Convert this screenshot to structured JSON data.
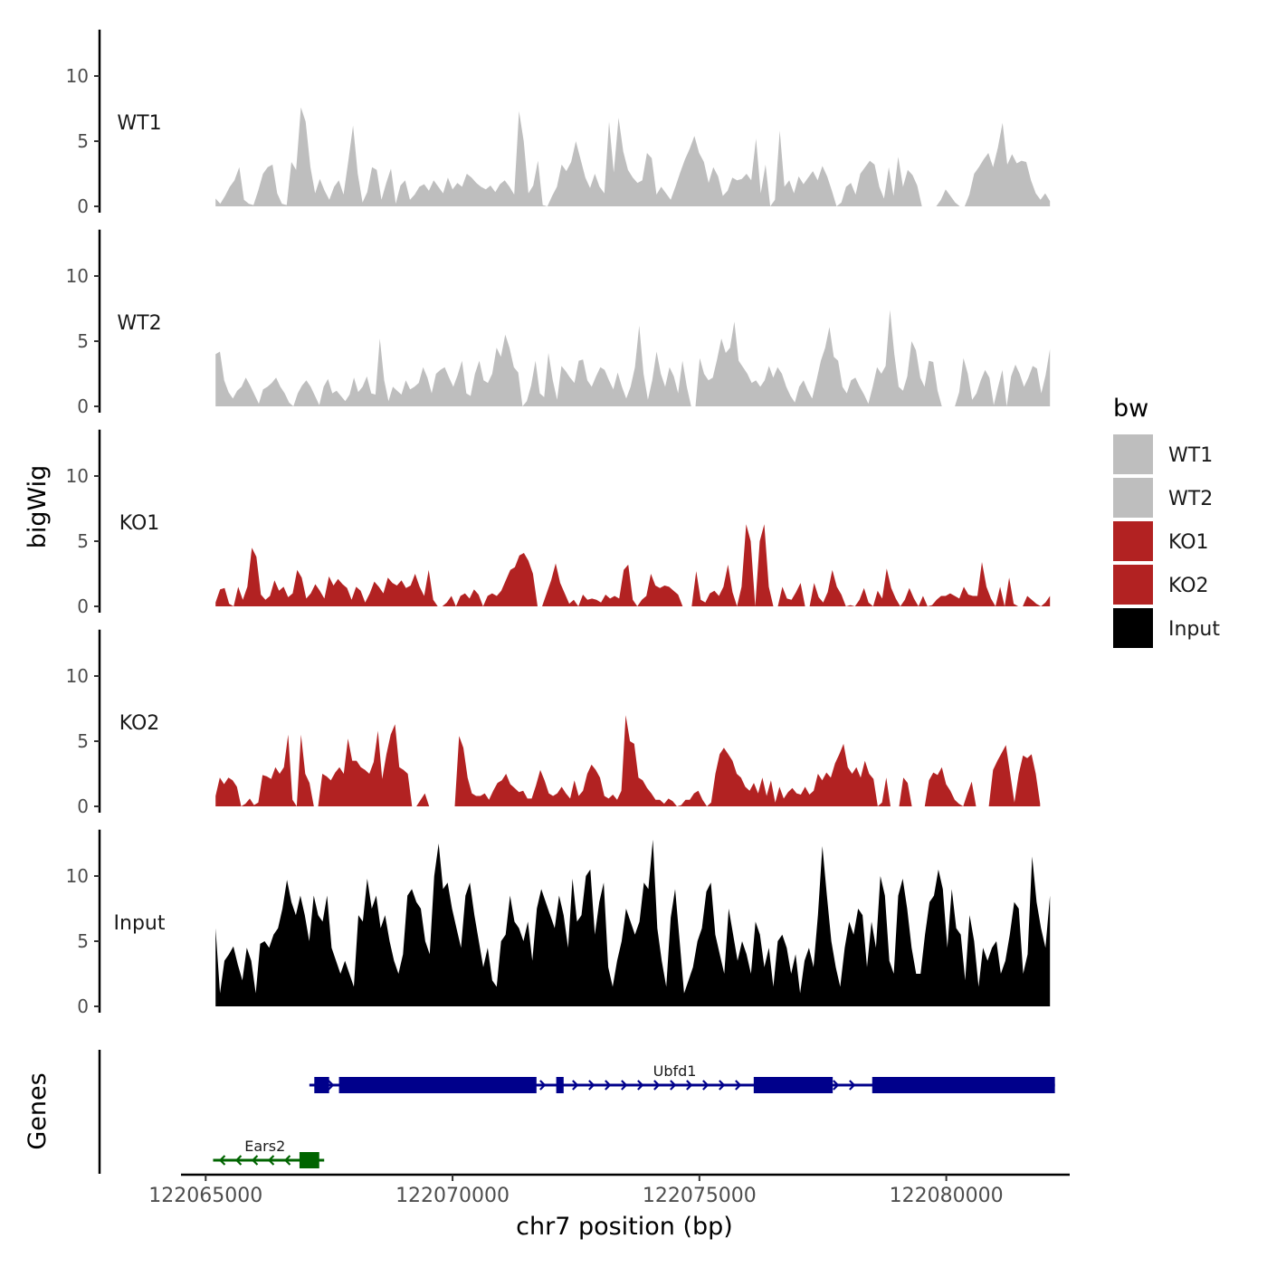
{
  "chart_data": {
    "type": "area",
    "title": "",
    "xlabel": "chr7 position (bp)",
    "ylabel": "bigWig",
    "genes_axis_label": "Genes",
    "xlim": [
      122064500,
      122082500
    ],
    "ylim": [
      0,
      13
    ],
    "x_ticks": [
      122065000,
      122070000,
      122075000,
      122080000
    ],
    "x_tick_labels": [
      "122065000",
      "122070000",
      "122075000",
      "122080000"
    ],
    "y_ticks": [
      0,
      5,
      10
    ],
    "y_tick_labels": [
      "0",
      "5",
      "10"
    ],
    "legend": {
      "title": "bw",
      "position": "right",
      "entries": [
        {
          "label": "WT1",
          "color": "#bebebe"
        },
        {
          "label": "WT2",
          "color": "#bebebe"
        },
        {
          "label": "KO1",
          "color": "#b22222"
        },
        {
          "label": "KO2",
          "color": "#b22222"
        },
        {
          "label": "Input",
          "color": "#000000"
        }
      ]
    },
    "series": [
      {
        "name": "WT1",
        "color": "#bebebe",
        "x_start": 122065200,
        "x_end": 122082100,
        "values": [
          0.6,
          0.2,
          0.8,
          1.5,
          2.0,
          3.0,
          0.5,
          0.2,
          0.1,
          1.2,
          2.5,
          3.0,
          3.2,
          1.0,
          0.2,
          0.1,
          3.4,
          2.8,
          7.6,
          6.5,
          3.0,
          1.0,
          2.1,
          1.2,
          0.5,
          1.5,
          2.0,
          0.9,
          3.5,
          6.2,
          2.5,
          0.3,
          1.1,
          3.0,
          2.8,
          0.5,
          1.8,
          2.9,
          0.2,
          1.6,
          2.0,
          0.5,
          0.9,
          1.5,
          1.7,
          1.2,
          2.0,
          1.5,
          1.0,
          2.2,
          1.3,
          1.8,
          1.5,
          2.5,
          2.2,
          1.8,
          1.5,
          1.3,
          1.6,
          1.1,
          1.7,
          2.0,
          1.5,
          0.9,
          7.3,
          5.0,
          1.0,
          1.6,
          3.5,
          0.1,
          0.0,
          0.8,
          1.5,
          3.2,
          2.7,
          3.4,
          5.0,
          3.6,
          2.2,
          1.4,
          2.5,
          1.5,
          1.0,
          6.5,
          2.6,
          6.8,
          4.2,
          2.8,
          2.2,
          1.8,
          2.0,
          4.1,
          3.7,
          0.9,
          1.5,
          1.0,
          0.5,
          1.5,
          2.6,
          3.6,
          4.4,
          5.4,
          4.1,
          3.4,
          1.8,
          3.0,
          2.3,
          0.8,
          1.2,
          2.2,
          2.0,
          2.1,
          2.5,
          2.0,
          5.2,
          1.0,
          3.2,
          0.0,
          0.5,
          5.8,
          1.5,
          2.0,
          1.0,
          2.3,
          1.7,
          2.2,
          2.7,
          2.0,
          3.1,
          2.3,
          1.2,
          0.0,
          0.3,
          1.5,
          1.8,
          0.9,
          2.5,
          3.0,
          3.5,
          3.2,
          1.5,
          0.6,
          3.0,
          0.8,
          3.8,
          1.5,
          2.8,
          2.4,
          1.6,
          0.0,
          0.0,
          0.0,
          0.0,
          0.5,
          1.3,
          0.8,
          0.3,
          0.0,
          0.0,
          0.9,
          2.5,
          3.0,
          3.6,
          4.1,
          3.0,
          4.5,
          6.4,
          3.2,
          4.0,
          3.3,
          3.5,
          3.4,
          2.0,
          1.0,
          0.5,
          1.0,
          0.4
        ]
      },
      {
        "name": "WT2",
        "color": "#bebebe",
        "x_start": 122065200,
        "x_end": 122082100,
        "values": [
          4.0,
          4.2,
          2.0,
          1.1,
          0.6,
          1.2,
          1.5,
          2.2,
          1.6,
          0.9,
          0.2,
          1.3,
          1.5,
          1.8,
          2.2,
          1.5,
          1.0,
          0.3,
          0.0,
          1.0,
          1.6,
          2.0,
          1.5,
          0.8,
          0.1,
          1.5,
          2.1,
          1.0,
          1.2,
          0.8,
          0.4,
          0.9,
          2.2,
          1.1,
          1.5,
          2.3,
          1.0,
          0.9,
          5.2,
          2.0,
          0.4,
          1.5,
          1.2,
          0.9,
          2.0,
          1.3,
          1.5,
          1.8,
          3.0,
          2.2,
          1.0,
          2.5,
          2.8,
          3.0,
          2.2,
          1.5,
          2.4,
          3.5,
          1.0,
          0.8,
          2.5,
          3.5,
          2.0,
          1.8,
          2.5,
          4.5,
          3.8,
          5.5,
          4.5,
          3.0,
          2.6,
          0.0,
          0.4,
          1.6,
          3.5,
          1.0,
          0.7,
          4.1,
          2.0,
          0.5,
          3.1,
          2.7,
          2.2,
          1.8,
          3.5,
          3.6,
          2.0,
          1.5,
          2.3,
          3.0,
          2.8,
          2.0,
          1.3,
          2.6,
          1.5,
          0.6,
          1.5,
          3.0,
          6.2,
          2.5,
          0.5,
          2.0,
          4.2,
          2.5,
          1.5,
          3.0,
          2.3,
          1.0,
          3.5,
          1.5,
          0.0,
          0.0,
          3.7,
          2.5,
          2.0,
          2.2,
          3.6,
          5.2,
          4.1,
          4.5,
          6.5,
          3.5,
          3.0,
          2.5,
          1.8,
          2.0,
          1.5,
          2.0,
          3.1,
          2.2,
          3.0,
          2.5,
          1.5,
          0.8,
          0.3,
          1.5,
          2.0,
          1.2,
          0.6,
          2.0,
          3.5,
          4.5,
          6.1,
          3.8,
          3.5,
          1.5,
          1.0,
          2.0,
          2.2,
          1.5,
          0.9,
          0.2,
          1.5,
          3.0,
          2.5,
          3.1,
          7.4,
          4.0,
          1.5,
          1.2,
          2.3,
          5.0,
          4.3,
          2.2,
          1.5,
          3.5,
          3.4,
          1.2,
          0.0,
          0.0,
          0.0,
          0.0,
          1.1,
          3.7,
          2.5,
          0.5,
          1.0,
          2.0,
          2.8,
          2.2,
          0.1,
          1.5,
          2.8,
          0.0,
          2.3,
          3.2,
          2.5,
          1.5,
          2.2,
          3.1,
          2.9,
          1.0,
          2.4,
          4.4
        ]
      },
      {
        "name": "KO1",
        "color": "#b22222",
        "x_start": 122065200,
        "x_end": 122082100,
        "values": [
          0.3,
          1.3,
          1.4,
          0.2,
          0.0,
          1.5,
          0.5,
          1.5,
          4.5,
          3.8,
          0.9,
          0.5,
          0.8,
          2.0,
          1.2,
          1.5,
          0.7,
          1.0,
          2.8,
          2.2,
          0.6,
          1.0,
          1.7,
          1.2,
          0.6,
          2.3,
          1.6,
          2.1,
          1.7,
          1.4,
          0.5,
          1.5,
          1.2,
          0.3,
          1.0,
          1.9,
          1.5,
          1.0,
          2.2,
          1.8,
          1.6,
          2.0,
          1.4,
          1.6,
          2.5,
          1.5,
          0.8,
          2.8,
          0.5,
          0.0,
          0.0,
          0.3,
          0.8,
          0.0,
          0.8,
          1.0,
          0.6,
          1.3,
          0.9,
          0.0,
          0.8,
          1.0,
          0.8,
          1.2,
          2.0,
          2.8,
          3.0,
          3.9,
          4.1,
          3.5,
          2.5,
          0.0,
          0.0,
          1.0,
          2.0,
          3.3,
          1.8,
          1.0,
          0.2,
          0.5,
          0.0,
          0.9,
          0.5,
          0.6,
          0.5,
          0.3,
          0.9,
          0.6,
          0.8,
          0.6,
          2.8,
          3.2,
          0.5,
          0.0,
          0.5,
          0.8,
          2.5,
          1.6,
          1.4,
          1.6,
          1.5,
          1.2,
          0.9,
          0.0,
          0.0,
          0.0,
          2.7,
          0.5,
          0.3,
          1.0,
          1.2,
          0.8,
          1.5,
          3.2,
          1.1,
          0.0,
          1.5,
          6.3,
          5.0,
          0.0,
          5.0,
          6.3,
          1.5,
          0.0,
          0.0,
          1.5,
          0.6,
          0.5,
          1.1,
          1.8,
          0.0,
          0.0,
          1.8,
          0.7,
          0.3,
          1.1,
          2.8,
          1.5,
          0.9,
          0.0,
          0.1,
          0.0,
          0.5,
          1.4,
          0.3,
          0.0,
          1.2,
          0.6,
          2.9,
          1.4,
          0.6,
          0.0,
          0.5,
          1.4,
          0.6,
          0.0,
          0.8,
          0.0,
          0.1,
          0.5,
          0.8,
          0.8,
          1.0,
          0.8,
          0.6,
          1.5,
          0.9,
          0.8,
          0.8,
          3.4,
          1.5,
          0.6,
          0.0,
          1.5,
          0.0,
          2.2,
          0.2,
          0.0,
          0.0,
          0.8,
          0.5,
          0.2,
          0.0,
          0.3,
          0.8
        ]
      },
      {
        "name": "KO2",
        "color": "#b22222",
        "x_start": 122065200,
        "x_end": 122081900,
        "values": [
          0.8,
          2.2,
          1.7,
          2.2,
          2.0,
          1.5,
          0.0,
          0.2,
          0.6,
          0.1,
          0.3,
          2.4,
          2.3,
          2.1,
          3.0,
          2.5,
          3.0,
          5.5,
          0.5,
          0.0,
          5.5,
          2.5,
          1.8,
          0.0,
          0.0,
          2.5,
          2.3,
          2.0,
          2.6,
          3.0,
          2.5,
          5.2,
          3.5,
          3.5,
          3.0,
          2.8,
          2.5,
          3.4,
          5.8,
          2.1,
          4.0,
          5.5,
          6.3,
          3.0,
          2.8,
          2.5,
          0.0,
          0.0,
          0.5,
          1.0,
          0.0,
          0.0,
          0.0,
          0.0,
          0.0,
          0.0,
          0.0,
          5.4,
          4.5,
          2.2,
          1.0,
          0.8,
          0.8,
          1.0,
          0.5,
          1.2,
          1.8,
          2.0,
          2.5,
          1.7,
          1.4,
          1.1,
          1.2,
          0.6,
          0.6,
          1.6,
          2.8,
          2.0,
          1.0,
          0.8,
          1.0,
          1.5,
          1.0,
          0.6,
          2.0,
          0.8,
          1.2,
          2.5,
          3.2,
          2.8,
          2.2,
          0.8,
          0.6,
          0.9,
          0.5,
          1.2,
          7.0,
          5.0,
          4.8,
          2.2,
          2.0,
          1.4,
          1.0,
          0.5,
          0.5,
          0.2,
          0.6,
          0.4,
          0.0,
          0.1,
          0.5,
          0.5,
          1.0,
          1.2,
          0.5,
          0.0,
          0.3,
          2.5,
          4.0,
          4.5,
          4.0,
          3.5,
          2.5,
          2.2,
          1.5,
          1.2,
          1.8,
          1.0,
          2.2,
          0.8,
          2.0,
          0.3,
          1.5,
          0.6,
          1.1,
          1.4,
          1.0,
          0.9,
          1.5,
          0.9,
          1.2,
          2.5,
          2.0,
          2.6,
          2.2,
          3.3,
          4.0,
          4.8,
          3.0,
          2.5,
          3.0,
          2.2,
          3.5,
          2.5,
          2.1,
          0.0,
          0.3,
          2.2,
          0.0,
          0.0,
          0.0,
          2.2,
          1.8,
          0.0,
          0.0,
          0.0,
          0.0,
          2.0,
          2.6,
          2.4,
          3.0,
          1.7,
          1.2,
          0.5,
          0.2,
          0.0,
          1.0,
          1.9,
          0.0,
          0.0,
          0.0,
          0.0,
          2.8,
          3.5,
          4.1,
          4.7,
          2.5,
          0.3,
          2.5,
          3.9,
          3.7,
          4.0,
          2.5,
          0.2
        ]
      },
      {
        "name": "Input",
        "color": "#000000",
        "x_start": 122065200,
        "x_end": 122082100,
        "values": [
          6.0,
          1.0,
          3.5,
          4.0,
          4.6,
          3.2,
          2.0,
          4.5,
          3.5,
          1.0,
          4.8,
          5.0,
          4.5,
          5.5,
          6.0,
          7.5,
          9.7,
          8.0,
          7.0,
          8.5,
          7.0,
          5.0,
          8.5,
          7.0,
          6.5,
          8.5,
          4.5,
          3.5,
          2.5,
          3.5,
          2.5,
          1.5,
          7.0,
          6.5,
          9.8,
          7.5,
          8.5,
          6.0,
          7.0,
          5.0,
          3.5,
          2.5,
          4.0,
          8.5,
          9.0,
          8.0,
          7.5,
          5.0,
          4.0,
          10.0,
          12.5,
          9.0,
          9.5,
          7.5,
          6.0,
          4.5,
          8.5,
          9.5,
          7.0,
          5.0,
          3.0,
          4.5,
          2.0,
          1.5,
          5.0,
          5.5,
          8.5,
          6.5,
          6.0,
          5.0,
          6.5,
          3.5,
          7.5,
          9.0,
          8.0,
          7.0,
          6.0,
          8.5,
          7.0,
          4.5,
          9.8,
          6.5,
          7.0,
          10.0,
          10.5,
          5.5,
          8.0,
          9.5,
          3.0,
          1.5,
          3.5,
          5.0,
          7.5,
          6.5,
          5.5,
          6.5,
          9.5,
          9.0,
          12.8,
          6.0,
          3.5,
          1.5,
          6.8,
          9.0,
          5.0,
          1.0,
          2.0,
          3.0,
          5.0,
          6.0,
          8.8,
          9.5,
          5.5,
          4.0,
          2.5,
          7.5,
          5.5,
          3.5,
          5.0,
          4.0,
          2.5,
          6.5,
          5.5,
          3.0,
          4.5,
          1.5,
          5.0,
          5.5,
          4.5,
          2.5,
          4.0,
          1.0,
          3.5,
          4.5,
          3.0,
          7.0,
          12.3,
          8.5,
          5.0,
          3.0,
          1.5,
          4.5,
          6.5,
          5.5,
          7.5,
          7.0,
          3.0,
          6.5,
          4.5,
          10.0,
          8.5,
          3.5,
          2.5,
          8.5,
          9.8,
          7.5,
          4.5,
          2.5,
          2.5,
          5.5,
          8.0,
          8.5,
          10.5,
          9.0,
          4.5,
          9.0,
          6.0,
          5.5,
          2.0,
          7.0,
          5.0,
          1.5,
          4.5,
          3.5,
          4.5,
          5.0,
          2.5,
          3.5,
          5.5,
          8.0,
          7.5,
          2.5,
          4.0,
          11.5,
          8.0,
          6.0,
          4.5,
          8.5
        ]
      }
    ],
    "genes": [
      {
        "name": "Ubfd1",
        "strand": "+",
        "start": 122067100,
        "end": 122082200,
        "color": "#00008b",
        "exons": [
          [
            122067200,
            122067500
          ],
          [
            122067700,
            122071700
          ],
          [
            122072100,
            122072250
          ],
          [
            122076100,
            122077700
          ],
          [
            122078500,
            122082200
          ]
        ]
      },
      {
        "name": "Ears2",
        "strand": "-",
        "start": 122065150,
        "end": 122067400,
        "color": "#006400",
        "exons": [
          [
            122066900,
            122067300
          ]
        ]
      }
    ]
  }
}
